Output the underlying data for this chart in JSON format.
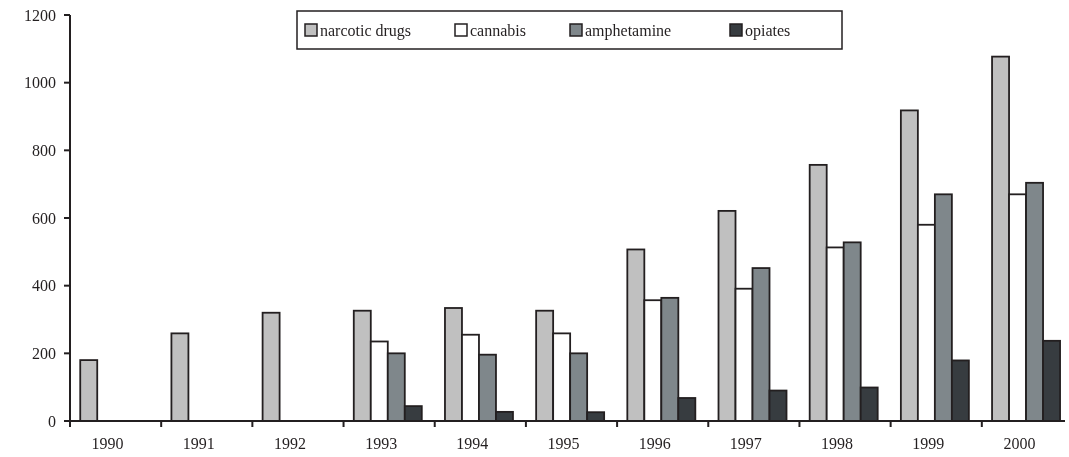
{
  "chart_data": {
    "type": "bar",
    "categories": [
      "1990",
      "1991",
      "1992",
      "1993",
      "1994",
      "1995",
      "1996",
      "1997",
      "1998",
      "1999",
      "2000"
    ],
    "series": [
      {
        "name": "narcotic drugs",
        "color": "#c0c0c0",
        "values": [
          180,
          259,
          320,
          326,
          334,
          326,
          507,
          621,
          757,
          918,
          1077
        ]
      },
      {
        "name": "cannabis",
        "color": "#ffffff",
        "values": [
          null,
          null,
          null,
          235,
          255,
          259,
          357,
          391,
          513,
          580,
          670
        ]
      },
      {
        "name": "amphetamine",
        "color": "#7f878b",
        "values": [
          null,
          null,
          null,
          200,
          196,
          200,
          364,
          452,
          528,
          670,
          704
        ]
      },
      {
        "name": "opiates",
        "color": "#373c40",
        "values": [
          null,
          null,
          null,
          44,
          27,
          26,
          68,
          90,
          99,
          179,
          237
        ]
      }
    ],
    "ylim": [
      0,
      1200
    ],
    "yticks": [
      0,
      200,
      400,
      600,
      800,
      1000,
      1200
    ],
    "legend": "top",
    "grid": false
  }
}
